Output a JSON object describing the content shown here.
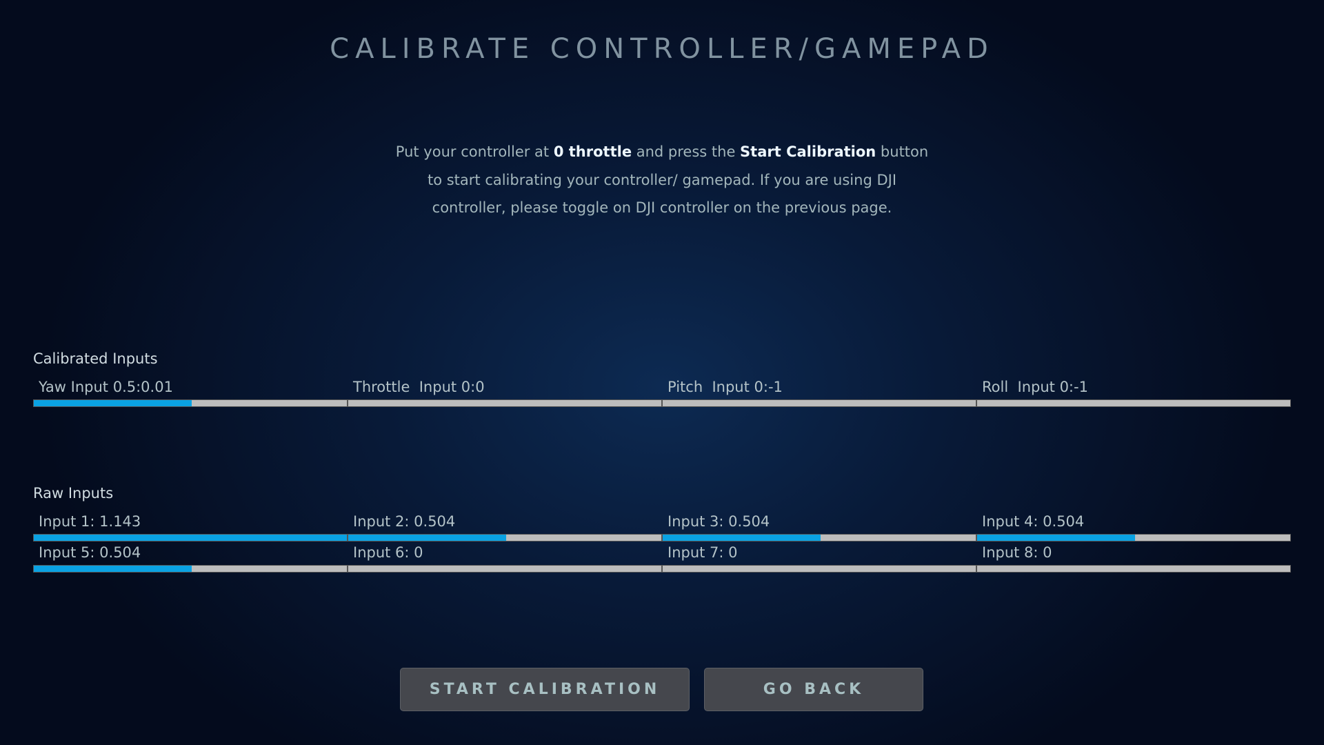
{
  "title": "CALIBRATE CONTROLLER/GAMEPAD",
  "description": {
    "part1": "Put your controller at ",
    "bold1": "0 throttle",
    "part2": " and press the ",
    "bold2": "Start Calibration",
    "part3": " button  to start calibrating your controller/ gamepad. If you are using DJI controller, please toggle on DJI controller on the previous page."
  },
  "calibrated": {
    "label": "Calibrated Inputs",
    "items": [
      {
        "label": "Yaw Input 0.5:0.01",
        "fill": 0.505
      },
      {
        "label": "Throttle  Input 0:0",
        "fill": 0
      },
      {
        "label": "Pitch  Input 0:-1",
        "fill": 0
      },
      {
        "label": "Roll  Input 0:-1",
        "fill": 0
      }
    ]
  },
  "raw": {
    "label": "Raw Inputs",
    "items": [
      {
        "label": "Input 1: 1.143",
        "fill": 1.0
      },
      {
        "label": "Input 2: 0.504",
        "fill": 0.504
      },
      {
        "label": "Input 3: 0.504",
        "fill": 0.504
      },
      {
        "label": "Input 4: 0.504",
        "fill": 0.504
      },
      {
        "label": "Input 5: 0.504",
        "fill": 0.504
      },
      {
        "label": "Input 6: 0",
        "fill": 0
      },
      {
        "label": "Input 7: 0",
        "fill": 0
      },
      {
        "label": "Input 8: 0",
        "fill": 0
      }
    ]
  },
  "buttons": {
    "start": "START CALIBRATION",
    "back": "GO BACK"
  },
  "colors": {
    "bar_fill": "#0aa2e3",
    "bar_track": "#bdbdbd",
    "button_bg": "#45474d"
  }
}
